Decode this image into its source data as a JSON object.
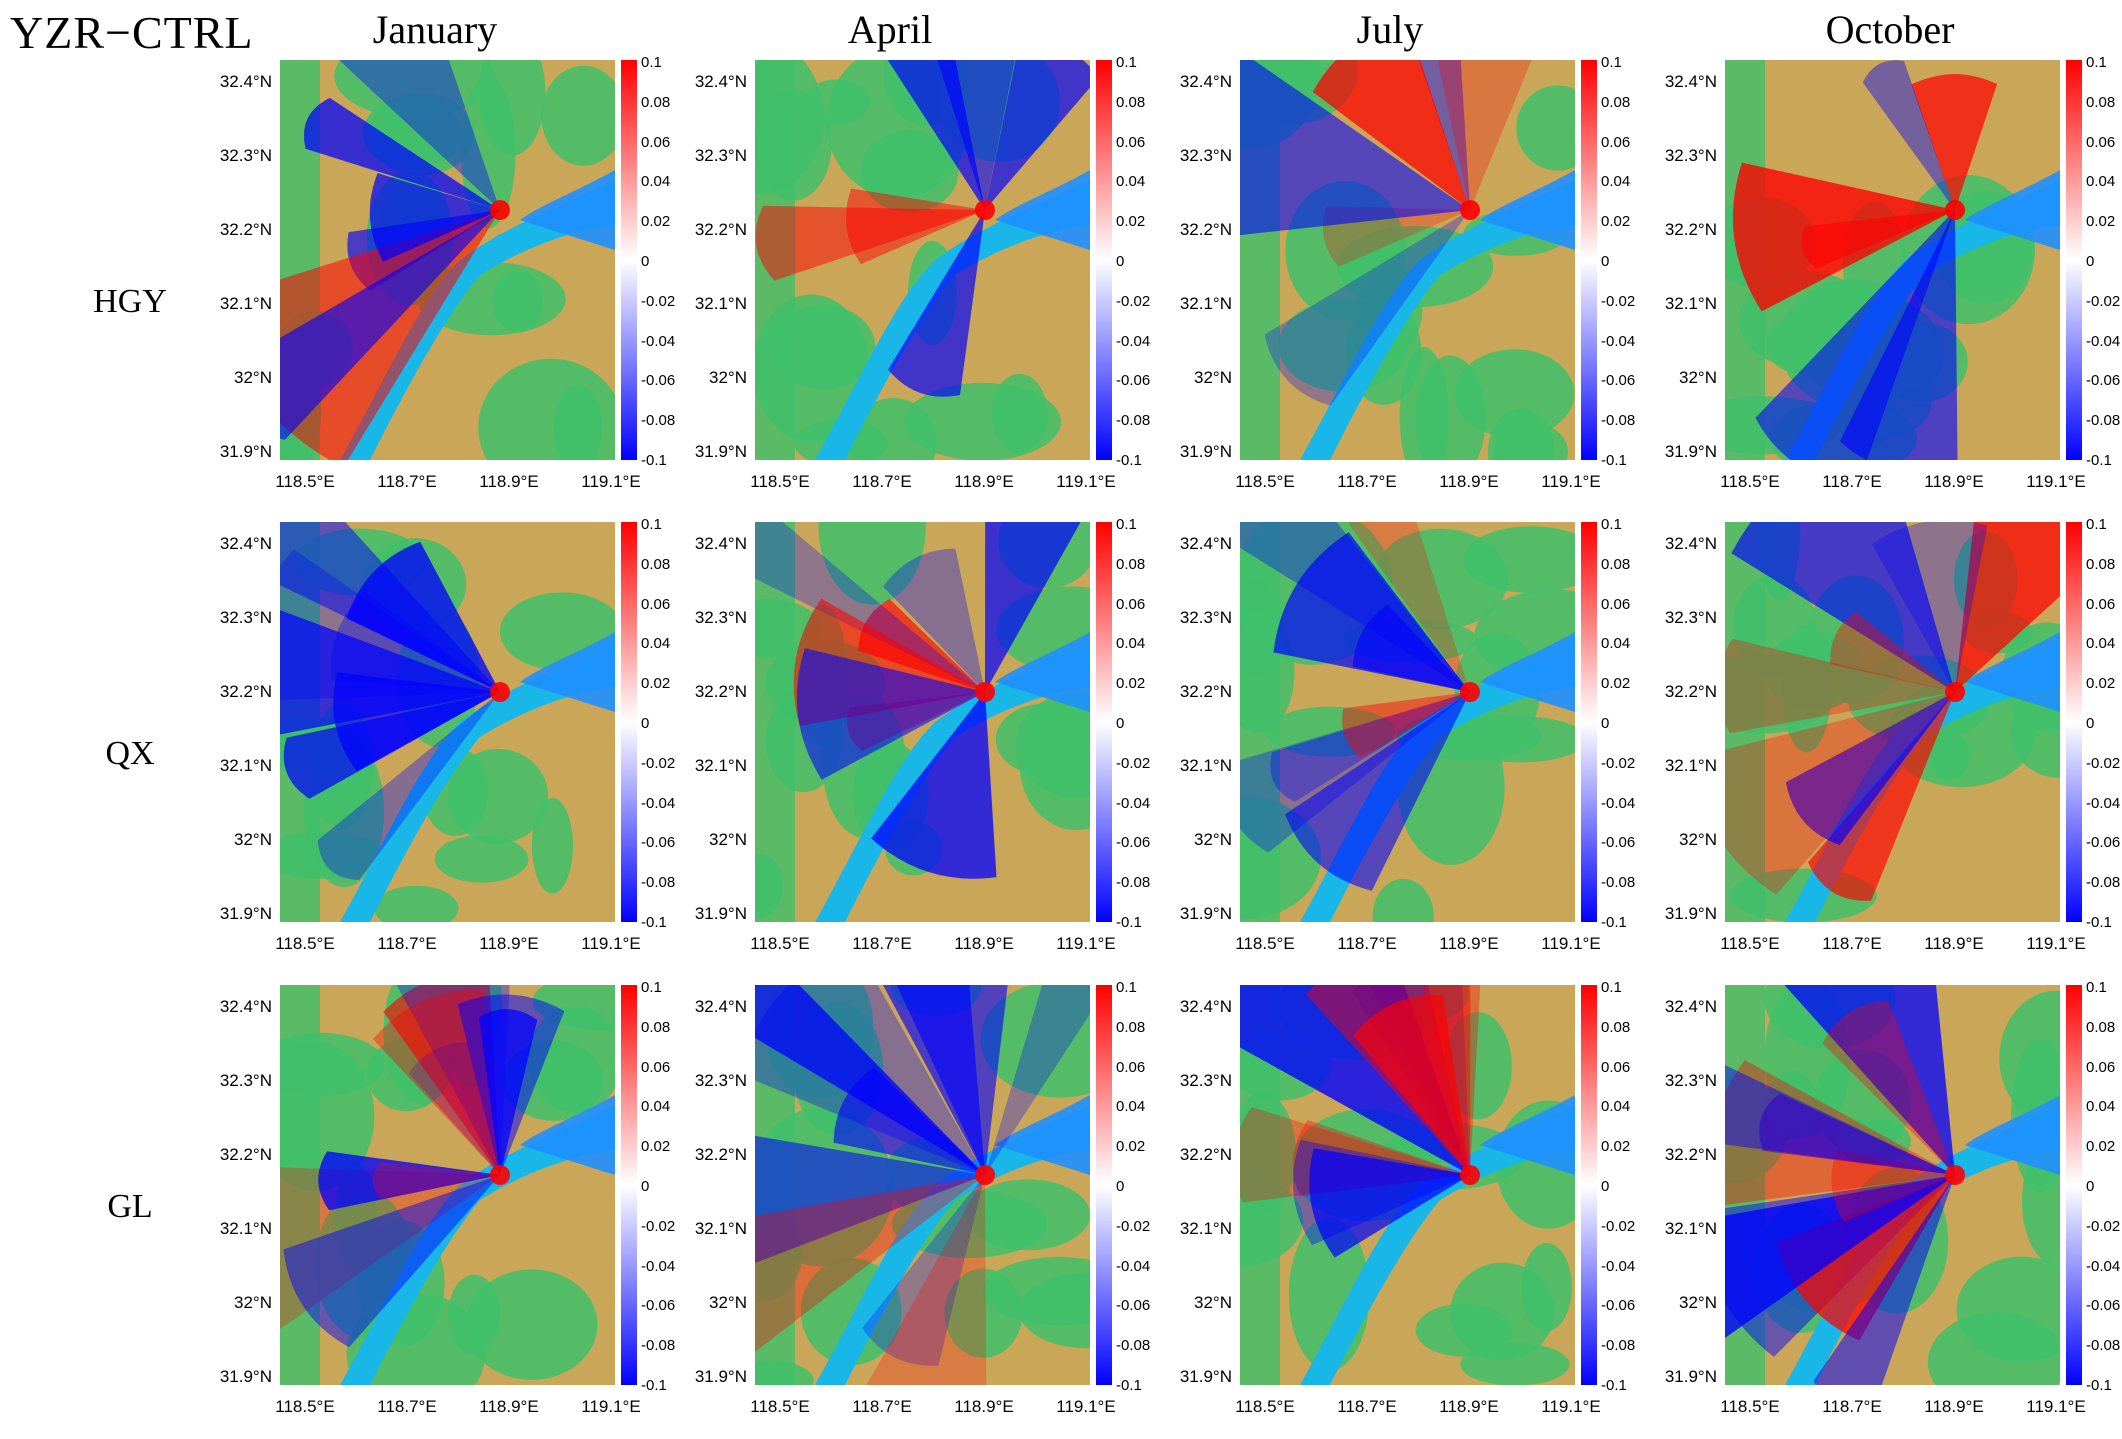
{
  "figure_title": "YZR−CTRL",
  "months": [
    "January",
    "April",
    "July",
    "October"
  ],
  "scenarios": [
    "HGY",
    "QX",
    "GL"
  ],
  "lat_ticks": [
    "32.4°N",
    "32.3°N",
    "32.2°N",
    "32.1°N",
    "32°N",
    "31.9°N"
  ],
  "lon_ticks": [
    "118.5°E",
    "118.7°E",
    "118.9°E",
    "119.1°E"
  ],
  "colorbar_ticks": [
    "0.1",
    "0.08",
    "0.06",
    "0.04",
    "0.02",
    "0",
    "-0.02",
    "-0.04",
    "-0.06",
    "-0.08",
    "-0.1"
  ],
  "colors": {
    "positive": "#ff0000",
    "negative": "#0000ff",
    "zero": "#ffffff",
    "water": "#19b6e8",
    "land_low": "#caa658",
    "land_high": "#3fbf6a"
  },
  "chart_data": {
    "type": "heatmap",
    "grid": "3 rows (scenario) x 4 columns (month)",
    "xlim": [
      118.4,
      119.1
    ],
    "ylim": [
      31.9,
      32.4
    ],
    "colorbar_range": [
      -0.1,
      0.1
    ]
  }
}
